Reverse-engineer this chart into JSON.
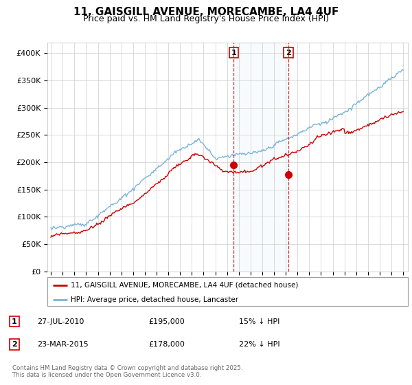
{
  "title": "11, GAISGILL AVENUE, MORECAMBE, LA4 4UF",
  "subtitle": "Price paid vs. HM Land Registry's House Price Index (HPI)",
  "ylim": [
    0,
    420000
  ],
  "yticks": [
    0,
    50000,
    100000,
    150000,
    200000,
    250000,
    300000,
    350000,
    400000
  ],
  "ytick_labels": [
    "£0",
    "£50K",
    "£100K",
    "£150K",
    "£200K",
    "£250K",
    "£300K",
    "£350K",
    "£400K"
  ],
  "hpi_color": "#7ab4d8",
  "price_color": "#cc0000",
  "sale1_date": 2010.57,
  "sale1_price": 195000,
  "sale2_date": 2015.23,
  "sale2_price": 178000,
  "legend_price_label": "11, GAISGILL AVENUE, MORECAMBE, LA4 4UF (detached house)",
  "legend_hpi_label": "HPI: Average price, detached house, Lancaster",
  "table_entries": [
    {
      "num": "1",
      "date": "27-JUL-2010",
      "price": "£195,000",
      "note": "15% ↓ HPI"
    },
    {
      "num": "2",
      "date": "23-MAR-2015",
      "price": "£178,000",
      "note": "22% ↓ HPI"
    }
  ],
  "footnote": "Contains HM Land Registry data © Crown copyright and database right 2025.\nThis data is licensed under the Open Government Licence v3.0.",
  "background_color": "#ffffff",
  "plot_bg_color": "#ffffff",
  "grid_color": "#cccccc",
  "title_fontsize": 11,
  "subtitle_fontsize": 9
}
